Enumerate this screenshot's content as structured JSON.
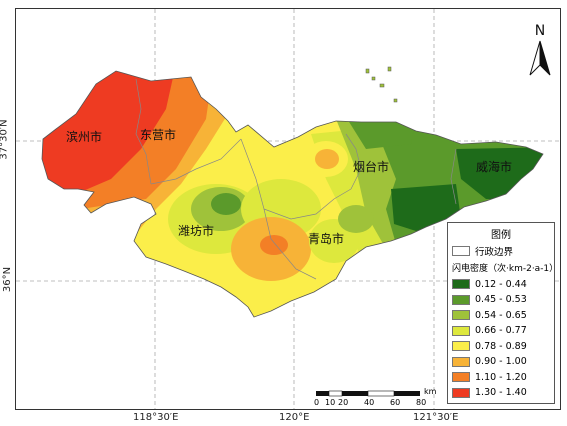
{
  "map": {
    "cities": [
      {
        "name": "滨州市"
      },
      {
        "name": "东营市"
      },
      {
        "name": "潍坊市"
      },
      {
        "name": "青岛市"
      },
      {
        "name": "烟台市"
      },
      {
        "name": "威海市"
      }
    ],
    "lon_ticks": [
      "118°30′E",
      "120°E",
      "121°30′E"
    ],
    "lat_ticks": [
      "37°30′N",
      "36°N"
    ],
    "north_label": "N"
  },
  "legend": {
    "title": "图例",
    "boundary_label": "行政边界",
    "density_label": "闪电密度（次·km-2·a-1）",
    "classes": [
      {
        "range": "0.12 - 0.44",
        "color": "#1e6b1a"
      },
      {
        "range": "0.45 - 0.53",
        "color": "#5b9a2b"
      },
      {
        "range": "0.54 - 0.65",
        "color": "#9fc23a"
      },
      {
        "range": "0.66 - 0.77",
        "color": "#dde83d"
      },
      {
        "range": "0.78 - 0.89",
        "color": "#fbee4a"
      },
      {
        "range": "0.90 - 1.00",
        "color": "#f7b337"
      },
      {
        "range": "1.10 - 1.20",
        "color": "#f37f26"
      },
      {
        "range": "1.30 - 1.40",
        "color": "#ee3b22"
      }
    ]
  },
  "scalebar": {
    "labels": [
      "0",
      "10",
      "20",
      "40",
      "60",
      "80"
    ],
    "unit": "km"
  }
}
